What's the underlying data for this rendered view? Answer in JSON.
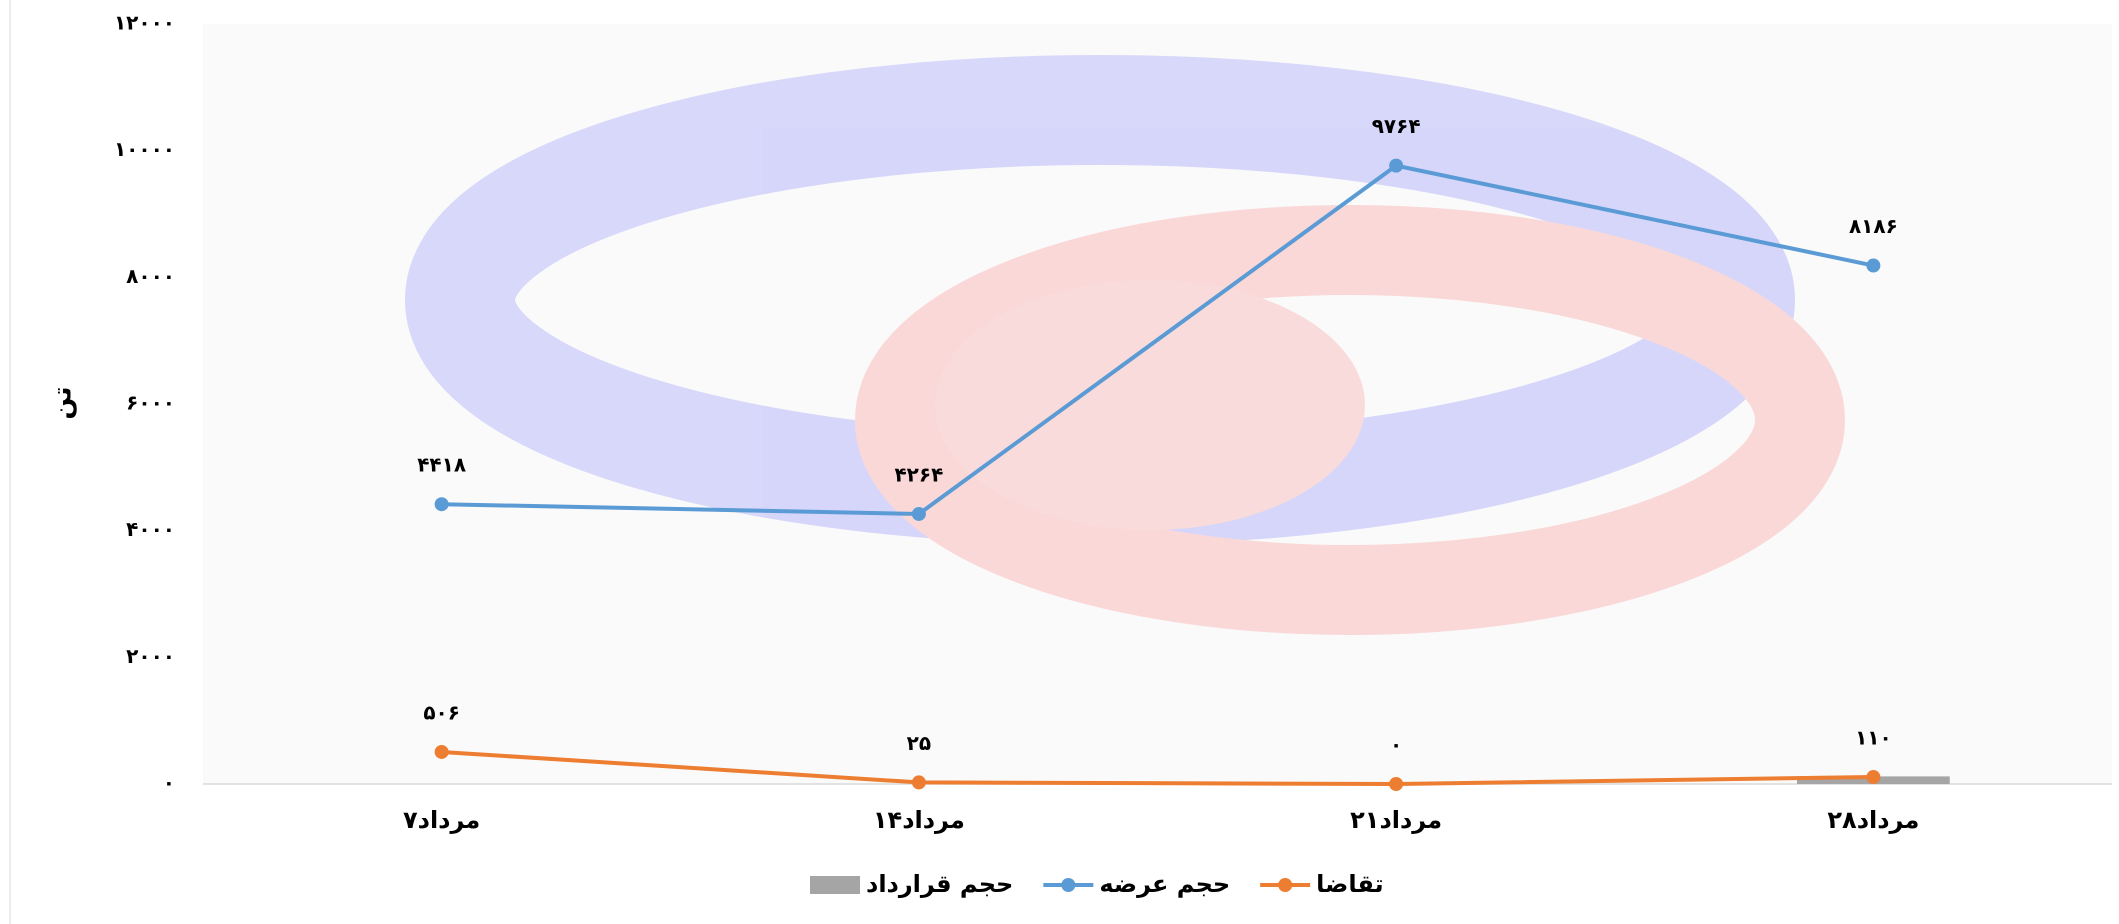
{
  "chart_data": {
    "type": "line",
    "y_label": "تن",
    "categories": [
      "۷مرداد",
      "۱۴مرداد",
      "۲۱مرداد",
      "۲۸مرداد"
    ],
    "series": [
      {
        "name": "حجم قرارداد",
        "type": "bar",
        "color": "#a5a5a5",
        "values": [
          0,
          0,
          0,
          120
        ]
      },
      {
        "name": "حجم عرضه",
        "type": "line",
        "color": "#5b9bd5",
        "values": [
          4418,
          4264,
          9764,
          8186
        ],
        "value_labels": [
          "۴۴۱۸",
          "۴۲۶۴",
          "۹۷۶۴",
          "۸۱۸۶"
        ]
      },
      {
        "name": "تقاضا",
        "type": "line",
        "color": "#ed7d31",
        "values": [
          506,
          25,
          0,
          110
        ],
        "value_labels": [
          "۵۰۶",
          "۲۵",
          "۰",
          "۱۱۰"
        ]
      }
    ],
    "ylim": [
      0,
      12000
    ],
    "yticks": [
      {
        "value": 0,
        "label": "۰"
      },
      {
        "value": 2000,
        "label": "۲۰۰۰"
      },
      {
        "value": 4000,
        "label": "۴۰۰۰"
      },
      {
        "value": 6000,
        "label": "۶۰۰۰"
      },
      {
        "value": 8000,
        "label": "۸۰۰۰"
      },
      {
        "value": 10000,
        "label": "۱۰۰۰۰"
      },
      {
        "value": 12000,
        "label": "۱۲۰۰۰"
      }
    ],
    "legend": "bottom"
  }
}
